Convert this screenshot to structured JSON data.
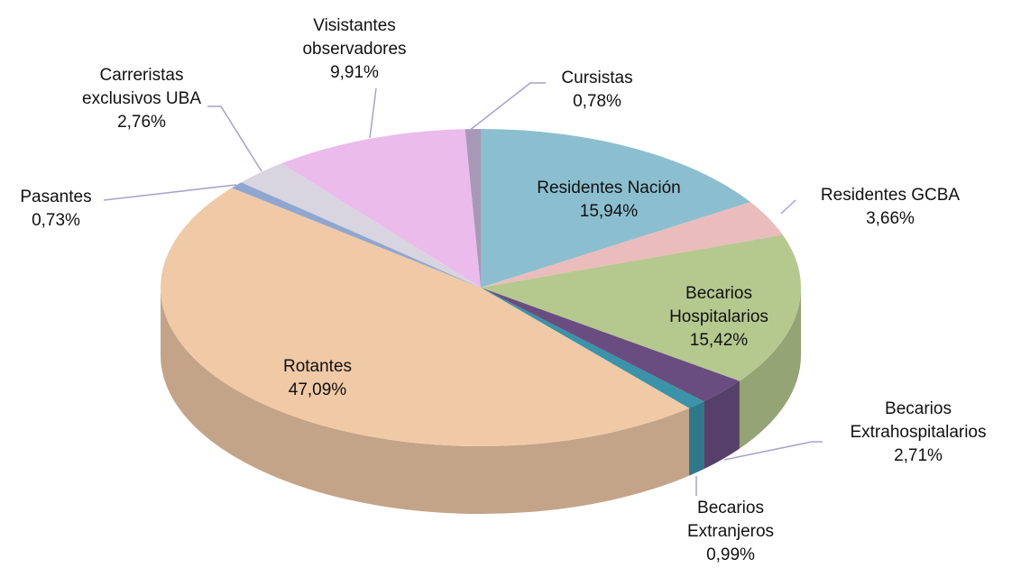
{
  "chart_data": {
    "type": "pie",
    "categories": [
      "Residentes Nación",
      "Residentes GCBA",
      "Becarios Hospitalarios",
      "Becarios Extrahospitalarios",
      "Becarios Extranjeros",
      "Rotantes",
      "Pasantes",
      "Carreristas exclusivos UBA",
      "Visistantes observadores",
      "Cursistas"
    ],
    "values": [
      15.94,
      3.66,
      15.42,
      2.71,
      0.99,
      47.09,
      0.73,
      2.76,
      9.91,
      0.78
    ],
    "value_labels": [
      "15,94%",
      "3,66%",
      "15,42%",
      "2,71%",
      "0,99%",
      "47,09%",
      "0,73%",
      "2,76%",
      "9,91%",
      "0,78%"
    ],
    "colors": [
      "#8bbfcf",
      "#ebbcbc",
      "#b5c98f",
      "#6a4d80",
      "#3a93a8",
      "#f0c9a6",
      "#8fa7cf",
      "#d8d4e0",
      "#ebbbec",
      "#a898b8"
    ]
  }
}
